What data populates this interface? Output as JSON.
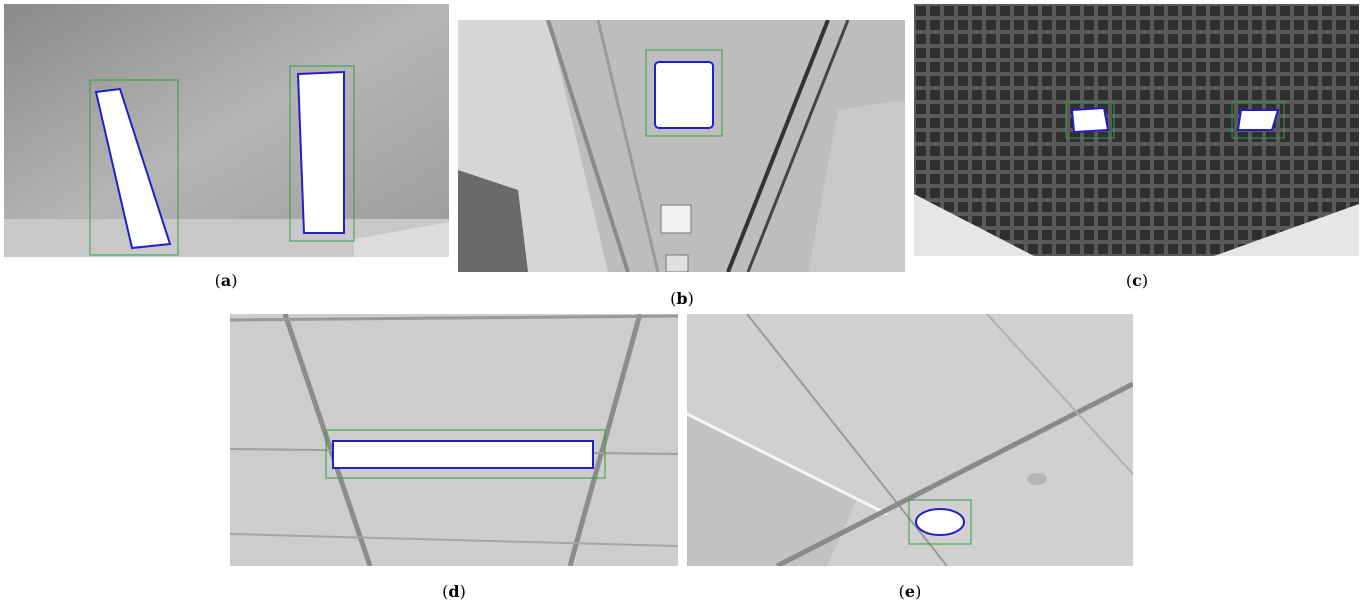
{
  "panels": [
    {
      "id": "a",
      "caption_open": "(",
      "caption_letter": "a",
      "caption_close": ")"
    },
    {
      "id": "b",
      "caption_open": "(",
      "caption_letter": "b",
      "caption_close": ")"
    },
    {
      "id": "c",
      "caption_open": "(",
      "caption_letter": "c",
      "caption_close": ")"
    },
    {
      "id": "d",
      "caption_open": "(",
      "caption_letter": "d",
      "caption_close": ")"
    },
    {
      "id": "e",
      "caption_open": "(",
      "caption_letter": "e",
      "caption_close": ")"
    }
  ],
  "colors": {
    "detection_box": "#2ea043",
    "lamp_outline": "#2020c8",
    "lamp_fill": "#ffffff"
  }
}
